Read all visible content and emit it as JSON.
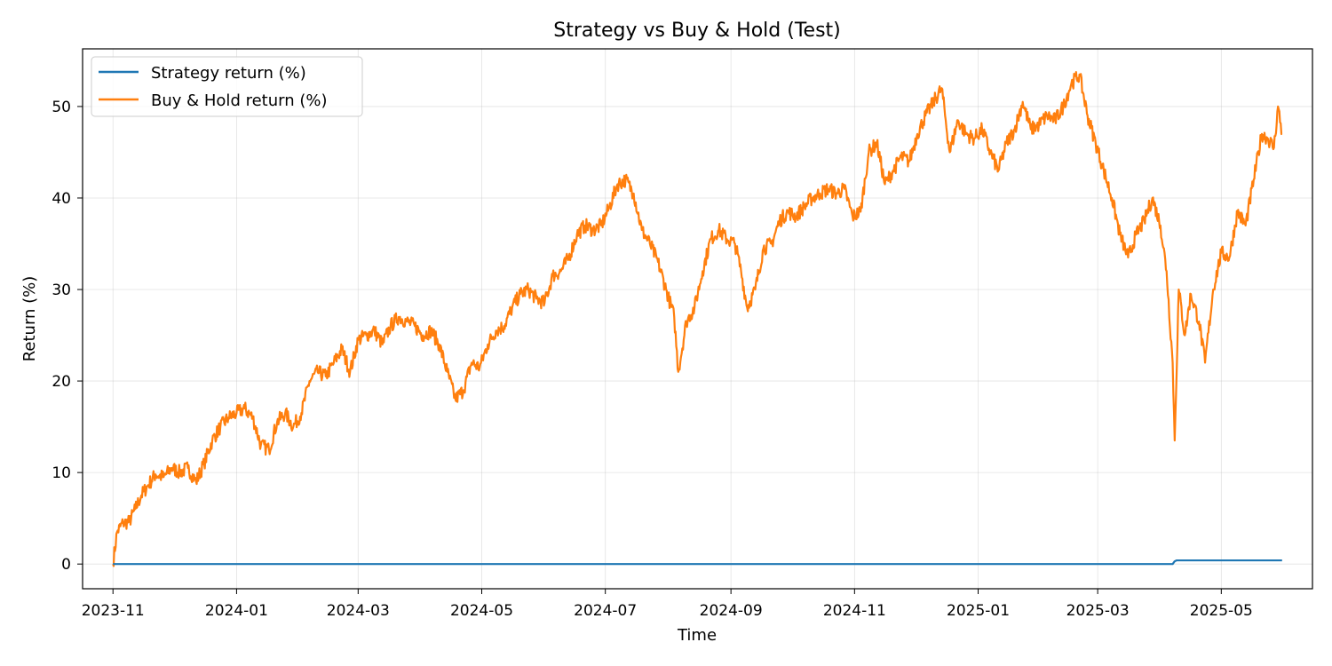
{
  "chart_data": {
    "type": "line",
    "title": "Strategy vs Buy & Hold (Test)",
    "xlabel": "Time",
    "ylabel": "Return (%)",
    "xlim": [
      "2023-10-17",
      "2025-06-15"
    ],
    "ylim": [
      -2.7,
      56.3
    ],
    "x_ticks": [
      "2023-11",
      "2024-01",
      "2024-03",
      "2024-05",
      "2024-07",
      "2024-09",
      "2024-11",
      "2025-01",
      "2025-03",
      "2025-05"
    ],
    "y_ticks": [
      0,
      10,
      20,
      30,
      40,
      50
    ],
    "grid": true,
    "legend_position": "top-left",
    "colors": {
      "strategy": "#1f77b4",
      "buy_hold": "#ff7f0e"
    },
    "series": [
      {
        "name": "Strategy return (%)",
        "points": [
          [
            "2023-11-01",
            0.0
          ],
          [
            "2025-04-07",
            0.0
          ],
          [
            "2025-04-08",
            0.3
          ],
          [
            "2025-04-09",
            0.4
          ],
          [
            "2025-05-31",
            0.4
          ]
        ]
      },
      {
        "name": "Buy & Hold return (%)",
        "points": [
          [
            "2023-11-01",
            0.0
          ],
          [
            "2023-11-03",
            3.5
          ],
          [
            "2023-11-06",
            4.5
          ],
          [
            "2023-11-09",
            4.6
          ],
          [
            "2023-11-12",
            6.0
          ],
          [
            "2023-11-15",
            7.5
          ],
          [
            "2023-11-18",
            8.5
          ],
          [
            "2023-11-22",
            9.8
          ],
          [
            "2023-11-26",
            9.5
          ],
          [
            "2023-11-30",
            10.5
          ],
          [
            "2023-12-04",
            10.0
          ],
          [
            "2023-12-08",
            10.5
          ],
          [
            "2023-12-12",
            9.0
          ],
          [
            "2023-12-16",
            11.0
          ],
          [
            "2023-12-20",
            13.5
          ],
          [
            "2023-12-24",
            15.0
          ],
          [
            "2023-12-28",
            16.0
          ],
          [
            "2024-01-01",
            16.5
          ],
          [
            "2024-01-05",
            17.0
          ],
          [
            "2024-01-09",
            16.0
          ],
          [
            "2024-01-13",
            13.0
          ],
          [
            "2024-01-17",
            12.5
          ],
          [
            "2024-01-21",
            15.5
          ],
          [
            "2024-01-25",
            16.5
          ],
          [
            "2024-01-29",
            15.0
          ],
          [
            "2024-02-02",
            16.5
          ],
          [
            "2024-02-06",
            20.0
          ],
          [
            "2024-02-10",
            21.0
          ],
          [
            "2024-02-14",
            20.5
          ],
          [
            "2024-02-18",
            22.0
          ],
          [
            "2024-02-22",
            23.5
          ],
          [
            "2024-02-26",
            21.0
          ],
          [
            "2024-03-01",
            24.5
          ],
          [
            "2024-03-05",
            25.0
          ],
          [
            "2024-03-09",
            25.5
          ],
          [
            "2024-03-13",
            24.0
          ],
          [
            "2024-03-17",
            26.0
          ],
          [
            "2024-03-21",
            27.0
          ],
          [
            "2024-03-25",
            26.5
          ],
          [
            "2024-03-29",
            26.0
          ],
          [
            "2024-04-02",
            25.0
          ],
          [
            "2024-04-06",
            25.5
          ],
          [
            "2024-04-10",
            24.0
          ],
          [
            "2024-04-14",
            21.0
          ],
          [
            "2024-04-18",
            18.0
          ],
          [
            "2024-04-22",
            19.0
          ],
          [
            "2024-04-26",
            22.0
          ],
          [
            "2024-04-30",
            21.5
          ],
          [
            "2024-05-04",
            24.0
          ],
          [
            "2024-05-08",
            25.5
          ],
          [
            "2024-05-12",
            26.0
          ],
          [
            "2024-05-16",
            28.0
          ],
          [
            "2024-05-20",
            29.5
          ],
          [
            "2024-05-24",
            30.0
          ],
          [
            "2024-05-28",
            29.0
          ],
          [
            "2024-06-01",
            28.5
          ],
          [
            "2024-06-05",
            31.5
          ],
          [
            "2024-06-09",
            32.0
          ],
          [
            "2024-06-13",
            33.5
          ],
          [
            "2024-06-17",
            36.0
          ],
          [
            "2024-06-21",
            37.0
          ],
          [
            "2024-06-25",
            36.5
          ],
          [
            "2024-06-29",
            37.0
          ],
          [
            "2024-07-03",
            39.0
          ],
          [
            "2024-07-07",
            41.5
          ],
          [
            "2024-07-11",
            42.0
          ],
          [
            "2024-07-15",
            40.5
          ],
          [
            "2024-07-19",
            36.5
          ],
          [
            "2024-07-23",
            35.0
          ],
          [
            "2024-07-27",
            33.0
          ],
          [
            "2024-07-31",
            30.0
          ],
          [
            "2024-08-04",
            27.0
          ],
          [
            "2024-08-06",
            21.0
          ],
          [
            "2024-08-10",
            26.5
          ],
          [
            "2024-08-14",
            28.0
          ],
          [
            "2024-08-18",
            32.0
          ],
          [
            "2024-08-22",
            35.5
          ],
          [
            "2024-08-26",
            36.5
          ],
          [
            "2024-08-30",
            35.5
          ],
          [
            "2024-09-03",
            35.0
          ],
          [
            "2024-09-06",
            32.0
          ],
          [
            "2024-09-09",
            28.0
          ],
          [
            "2024-09-13",
            30.0
          ],
          [
            "2024-09-17",
            34.5
          ],
          [
            "2024-09-21",
            35.0
          ],
          [
            "2024-09-25",
            37.5
          ],
          [
            "2024-09-29",
            38.5
          ],
          [
            "2024-10-03",
            38.0
          ],
          [
            "2024-10-07",
            39.0
          ],
          [
            "2024-10-11",
            40.0
          ],
          [
            "2024-10-15",
            40.5
          ],
          [
            "2024-10-19",
            41.0
          ],
          [
            "2024-10-23",
            40.5
          ],
          [
            "2024-10-27",
            41.0
          ],
          [
            "2024-10-31",
            38.0
          ],
          [
            "2024-11-04",
            38.5
          ],
          [
            "2024-11-08",
            45.0
          ],
          [
            "2024-11-12",
            46.0
          ],
          [
            "2024-11-16",
            41.5
          ],
          [
            "2024-11-20",
            43.0
          ],
          [
            "2024-11-24",
            44.5
          ],
          [
            "2024-11-28",
            44.0
          ],
          [
            "2024-12-02",
            47.0
          ],
          [
            "2024-12-06",
            49.0
          ],
          [
            "2024-12-10",
            50.5
          ],
          [
            "2024-12-14",
            52.0
          ],
          [
            "2024-12-18",
            45.0
          ],
          [
            "2024-12-22",
            48.5
          ],
          [
            "2024-12-26",
            47.0
          ],
          [
            "2024-12-30",
            46.5
          ],
          [
            "2025-01-03",
            47.5
          ],
          [
            "2025-01-07",
            45.0
          ],
          [
            "2025-01-11",
            43.0
          ],
          [
            "2025-01-15",
            46.0
          ],
          [
            "2025-01-19",
            47.5
          ],
          [
            "2025-01-23",
            50.5
          ],
          [
            "2025-01-27",
            47.5
          ],
          [
            "2025-01-31",
            48.0
          ],
          [
            "2025-02-04",
            49.0
          ],
          [
            "2025-02-08",
            48.5
          ],
          [
            "2025-02-12",
            50.0
          ],
          [
            "2025-02-16",
            52.5
          ],
          [
            "2025-02-20",
            53.5
          ],
          [
            "2025-02-24",
            49.0
          ],
          [
            "2025-02-28",
            46.0
          ],
          [
            "2025-03-04",
            43.0
          ],
          [
            "2025-03-08",
            40.0
          ],
          [
            "2025-03-12",
            36.0
          ],
          [
            "2025-03-16",
            33.5
          ],
          [
            "2025-03-20",
            36.0
          ],
          [
            "2025-03-24",
            37.5
          ],
          [
            "2025-03-28",
            40.0
          ],
          [
            "2025-04-01",
            37.0
          ],
          [
            "2025-04-04",
            32.0
          ],
          [
            "2025-04-07",
            22.0
          ],
          [
            "2025-04-08",
            13.5
          ],
          [
            "2025-04-10",
            30.0
          ],
          [
            "2025-04-13",
            25.0
          ],
          [
            "2025-04-16",
            29.5
          ],
          [
            "2025-04-20",
            26.5
          ],
          [
            "2025-04-23",
            22.0
          ],
          [
            "2025-04-27",
            30.0
          ],
          [
            "2025-05-01",
            34.0
          ],
          [
            "2025-05-05",
            33.5
          ],
          [
            "2025-05-09",
            38.5
          ],
          [
            "2025-05-13",
            37.0
          ],
          [
            "2025-05-17",
            42.0
          ],
          [
            "2025-05-21",
            47.0
          ],
          [
            "2025-05-24",
            46.5
          ],
          [
            "2025-05-27",
            45.5
          ],
          [
            "2025-05-29",
            50.0
          ],
          [
            "2025-05-31",
            47.0
          ]
        ]
      }
    ]
  }
}
